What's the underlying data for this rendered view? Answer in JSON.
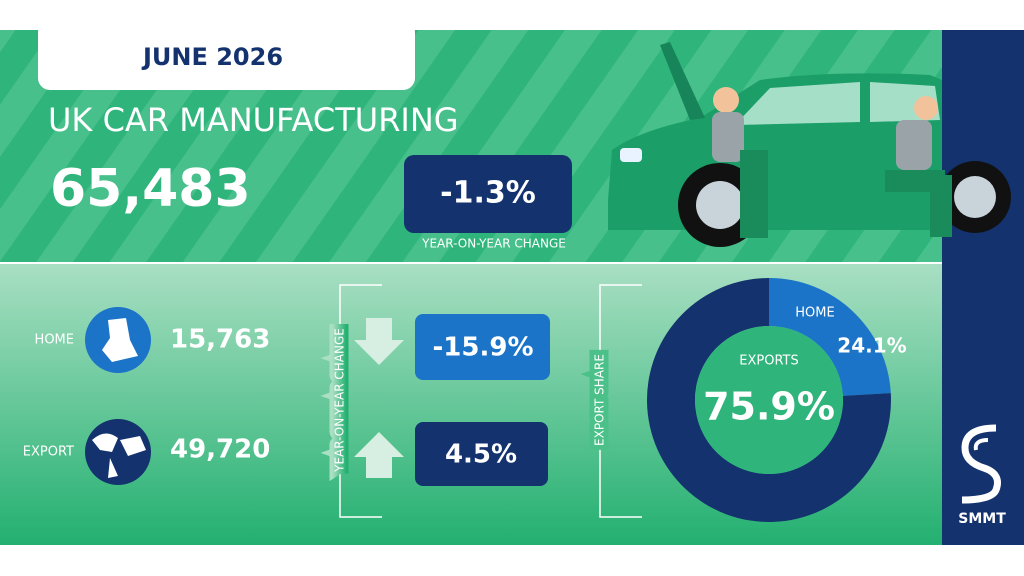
{
  "header": {
    "date": "JUNE 2026",
    "title": "UK CAR MANUFACTURING",
    "total": "65,483",
    "change": "-1.3%",
    "change_label": "YEAR-ON-YEAR CHANGE"
  },
  "breakdown": {
    "axis_label": "YEAR-ON-YEAR CHANGE",
    "rows": [
      {
        "label": "HOME",
        "value": "15,763",
        "change": "-15.9%"
      },
      {
        "label": "EXPORT",
        "value": "49,720",
        "change": "4.5%"
      }
    ]
  },
  "export_share": {
    "axis_label": "EXPORT SHARE",
    "segments": [
      {
        "name": "HOME",
        "value": 24.1,
        "label": "24.1%",
        "color": "#1b74c8"
      },
      {
        "name": "EXPORTS",
        "value": 75.9,
        "label": "75.9%",
        "color": "#13326e"
      }
    ]
  },
  "logo": "SMMT"
}
